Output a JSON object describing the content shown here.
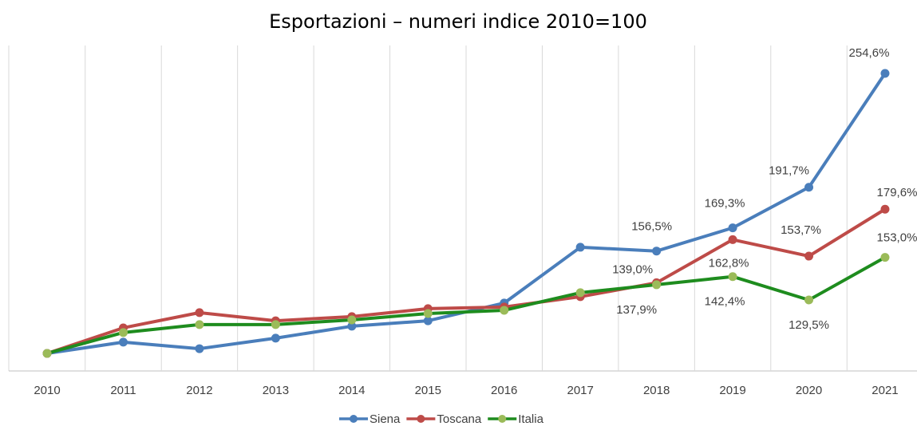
{
  "chart_data": {
    "type": "line",
    "title": "Esportazioni – numeri indice 2010=100",
    "categories": [
      "2010",
      "2011",
      "2012",
      "2013",
      "2014",
      "2015",
      "2016",
      "2017",
      "2018",
      "2019",
      "2020",
      "2021"
    ],
    "series": [
      {
        "name": "Siena",
        "color": "#4a7ebb",
        "marker_color": "#4a7ebb",
        "values": [
          100,
          106.2,
          102.6,
          108.4,
          115,
          118,
          127.8,
          158.6,
          156.5,
          169.3,
          191.7,
          254.6
        ],
        "value_labels": [
          null,
          null,
          null,
          null,
          null,
          null,
          null,
          null,
          "156,5%",
          "169,3%",
          "191,7%",
          "254,6%"
        ]
      },
      {
        "name": "Toscana",
        "color": "#be4b48",
        "marker_color": "#be4b48",
        "values": [
          100,
          114.1,
          122.5,
          118,
          120.3,
          124.7,
          125.6,
          131.3,
          139.0,
          162.8,
          153.7,
          179.6
        ],
        "value_labels": [
          null,
          null,
          null,
          null,
          null,
          null,
          null,
          null,
          "139,0%",
          "162,8%",
          "153,7%",
          "179,6%"
        ]
      },
      {
        "name": "Italia",
        "color": "#1e8c1e",
        "marker_color": "#9bbb59",
        "values": [
          100,
          111.5,
          115.9,
          115.9,
          118.5,
          122,
          123.8,
          133.5,
          137.9,
          142.4,
          129.5,
          153.0
        ],
        "value_labels": [
          null,
          null,
          null,
          null,
          null,
          null,
          null,
          null,
          "137,9%",
          "142,4%",
          "129,5%",
          "153,0%"
        ]
      }
    ],
    "ylim": [
      90.3,
      270
    ],
    "legend": "bottom"
  }
}
